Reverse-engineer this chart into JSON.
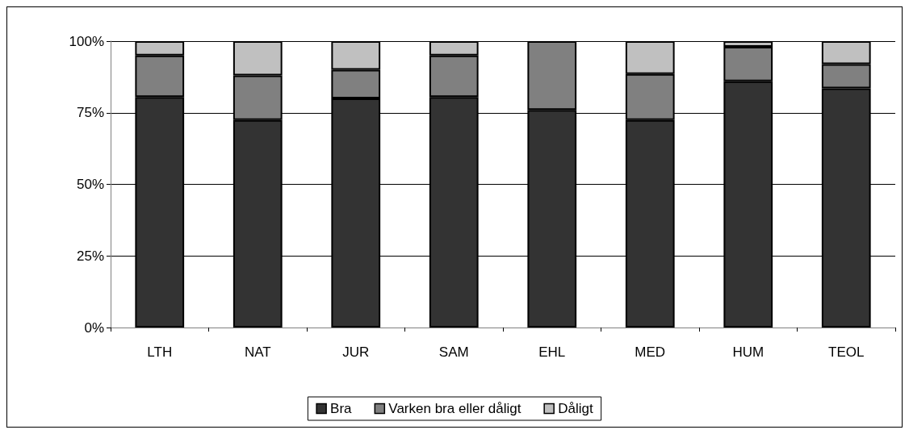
{
  "chart_data": {
    "type": "bar",
    "stacked": true,
    "categories": [
      "LTH",
      "NAT",
      "JUR",
      "SAM",
      "EHL",
      "MED",
      "HUM",
      "TEOL"
    ],
    "series": [
      {
        "name": "Bra",
        "color": "#333333",
        "values": [
          80.5,
          72.5,
          80,
          80.5,
          76,
          72.5,
          86,
          83.5
        ]
      },
      {
        "name": "Varken bra eller dåligt",
        "color": "#808080",
        "values": [
          14.5,
          15.5,
          10,
          14.5,
          24,
          16,
          12,
          8.5
        ]
      },
      {
        "name": "Dåligt",
        "color": "#c0c0c0",
        "values": [
          5,
          12,
          10,
          5,
          0,
          11.5,
          2,
          8
        ]
      }
    ],
    "ylim": [
      0,
      100
    ],
    "yticks": [
      {
        "value": 0,
        "label": "0%"
      },
      {
        "value": 25,
        "label": "25%"
      },
      {
        "value": 50,
        "label": "50%"
      },
      {
        "value": 75,
        "label": "75%"
      },
      {
        "value": 100,
        "label": "100%"
      }
    ],
    "grid": "y",
    "legend": "bottom"
  }
}
